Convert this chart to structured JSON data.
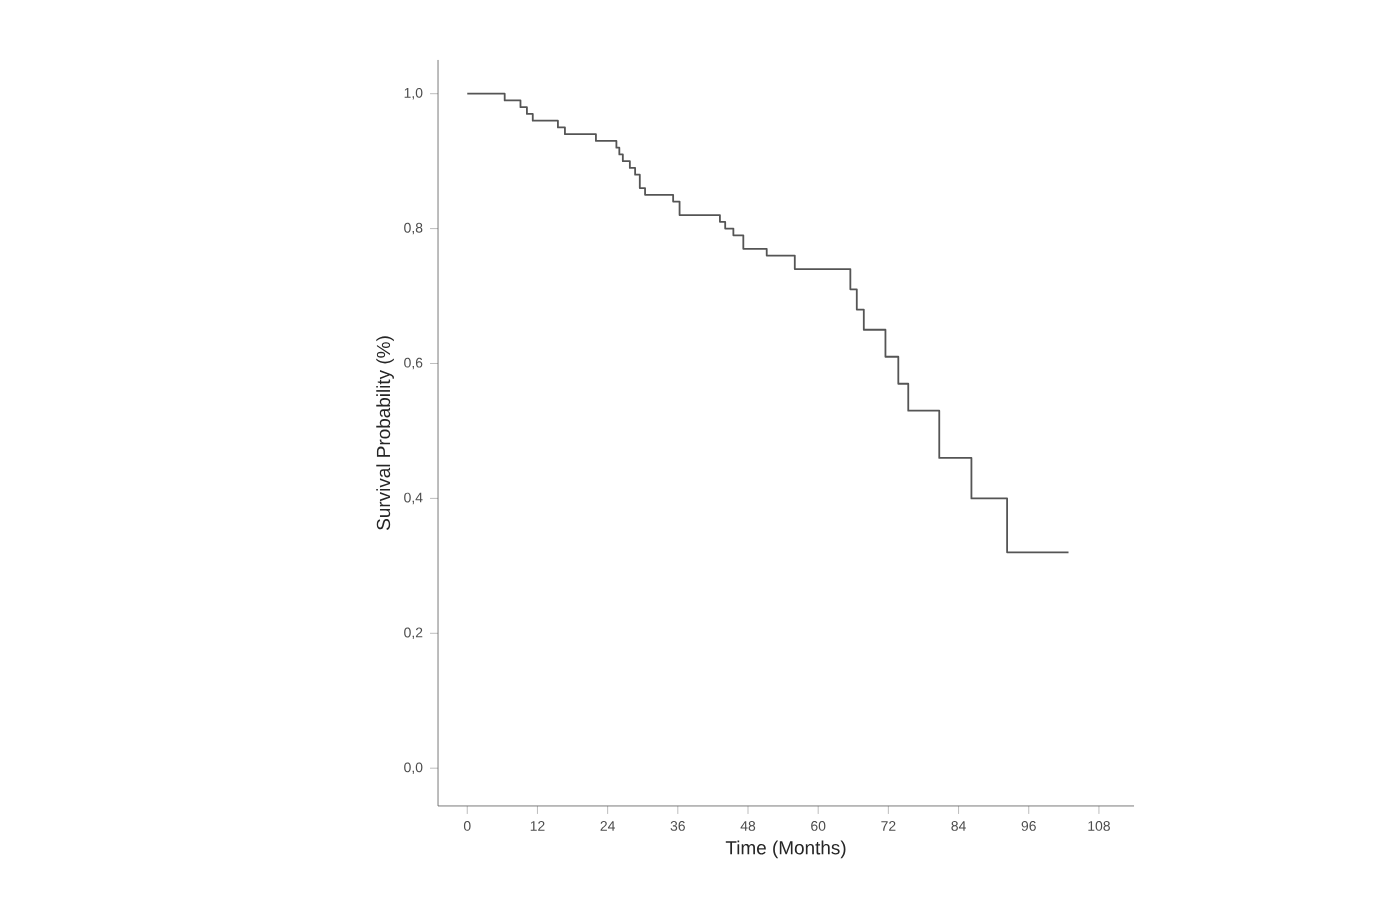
{
  "chart_data": {
    "type": "step",
    "xlabel": "Time (Months)",
    "ylabel": "Survival Probability (%)",
    "x": [
      0,
      6.4,
      7.8,
      9.1,
      10.2,
      11.2,
      15.5,
      16.7,
      22,
      25.5,
      26,
      26.6,
      27.8,
      28.7,
      29.5,
      30.4,
      35.2,
      36.3,
      43.2,
      44.1,
      45.5,
      47.2,
      51.2,
      56,
      65.5,
      66.6,
      67.8,
      71.5,
      73.7,
      75.4,
      80.7,
      86.2,
      92.3,
      102.8
    ],
    "values": [
      1.0,
      0.99,
      0.99,
      0.98,
      0.97,
      0.96,
      0.95,
      0.94,
      0.93,
      0.92,
      0.91,
      0.9,
      0.89,
      0.88,
      0.86,
      0.85,
      0.84,
      0.82,
      0.81,
      0.8,
      0.79,
      0.77,
      0.76,
      0.74,
      0.71,
      0.68,
      0.65,
      0.61,
      0.57,
      0.53,
      0.46,
      0.4,
      0.32,
      0.32
    ],
    "color": "#555555",
    "line_style": "solid",
    "grid": false,
    "xlim": [
      -5,
      114
    ],
    "ylim": [
      -0.056,
      1.05
    ],
    "xticks": [
      0,
      12,
      24,
      36,
      48,
      60,
      72,
      84,
      96,
      108
    ],
    "yticks": [
      {
        "value": 0.0,
        "label": "0,0"
      },
      {
        "value": 0.2,
        "label": "0,2"
      },
      {
        "value": 0.4,
        "label": "0,4"
      },
      {
        "value": 0.6,
        "label": "0,6"
      },
      {
        "value": 0.8,
        "label": "0,8"
      },
      {
        "value": 1.0,
        "label": "1,0"
      }
    ]
  }
}
